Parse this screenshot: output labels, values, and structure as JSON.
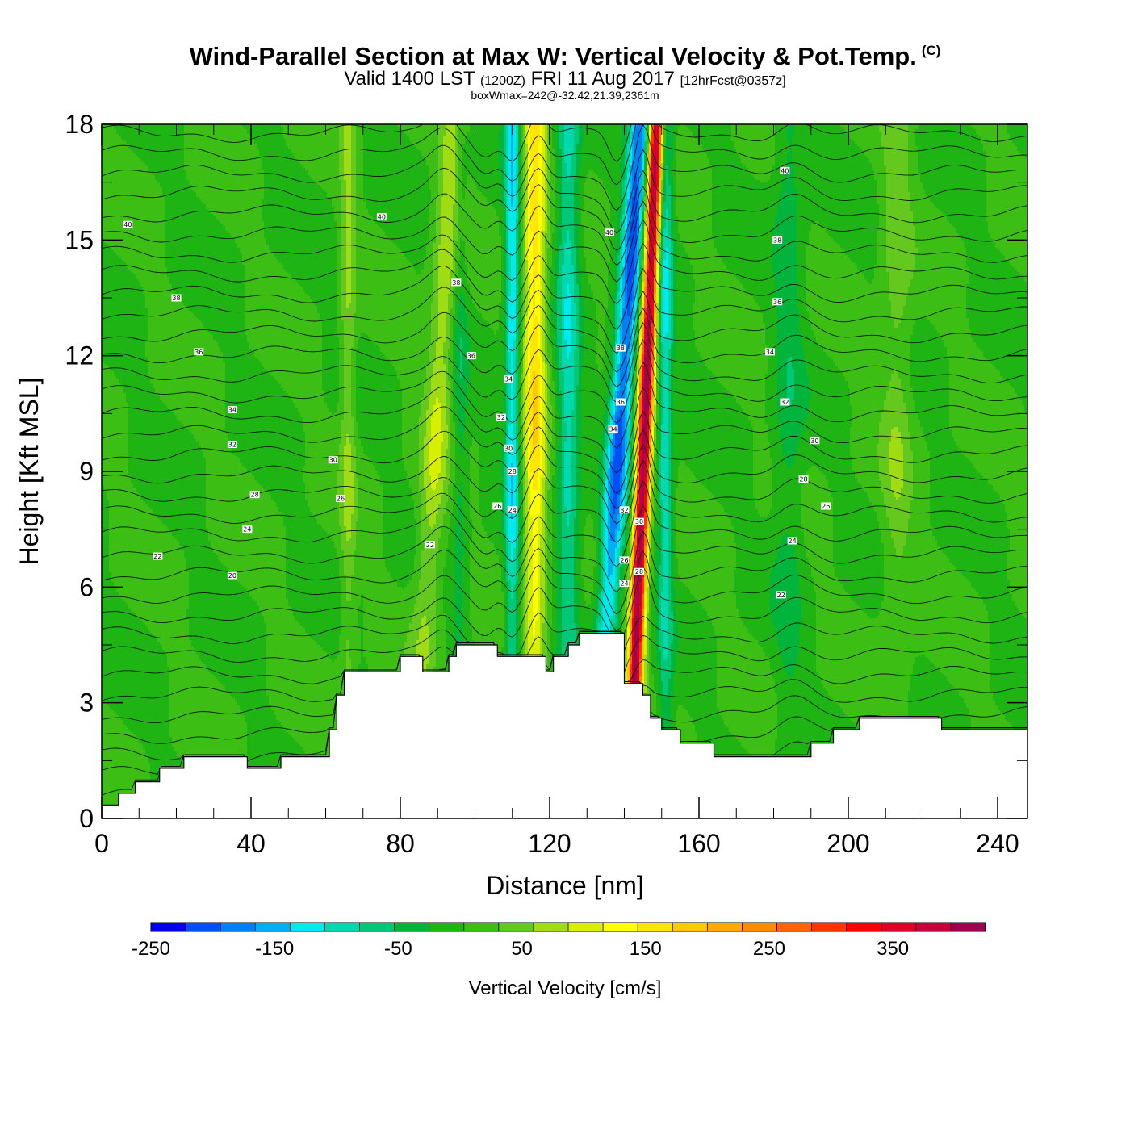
{
  "title": {
    "main": "Wind-Parallel Section at Max W: Vertical Velocity & Pot.Temp.",
    "copyright": "(C)",
    "valid_prefix": "Valid 1400 LST",
    "valid_z": "(1200Z)",
    "valid_date": "FRI 11 Aug 2017",
    "forecast": "[12hrFcst@0357z]",
    "box": "boxWmax=242@-32.42,21.39,2361m"
  },
  "chart_data": {
    "type": "heatmap",
    "xlabel": "Distance [nm]",
    "ylabel": "Height [Kft MSL]",
    "xlim": [
      0,
      248
    ],
    "ylim": [
      0,
      18
    ],
    "x_ticks": [
      "0",
      "40",
      "80",
      "120",
      "160",
      "200",
      "240"
    ],
    "y_ticks": [
      "0",
      "3",
      "6",
      "9",
      "12",
      "15",
      "18"
    ],
    "x_tick_values": [
      0,
      40,
      80,
      120,
      160,
      200,
      240
    ],
    "y_tick_values": [
      0,
      3,
      6,
      9,
      12,
      15,
      18
    ],
    "background_level": -25,
    "terrain": [
      [
        0,
        0.35
      ],
      [
        4.5,
        0.35
      ],
      [
        4.5,
        0.65
      ],
      [
        9,
        0.65
      ],
      [
        9,
        0.95
      ],
      [
        15.5,
        0.95
      ],
      [
        15.5,
        1.3
      ],
      [
        22,
        1.3
      ],
      [
        22,
        1.6
      ],
      [
        39,
        1.6
      ],
      [
        39,
        1.3
      ],
      [
        48,
        1.3
      ],
      [
        48,
        1.6
      ],
      [
        61,
        1.6
      ],
      [
        61,
        2.3
      ],
      [
        63,
        2.3
      ],
      [
        63,
        3.2
      ],
      [
        65,
        3.2
      ],
      [
        65,
        3.8
      ],
      [
        80,
        3.8
      ],
      [
        80,
        4.2
      ],
      [
        86,
        4.2
      ],
      [
        86,
        3.8
      ],
      [
        93,
        3.8
      ],
      [
        93,
        4.2
      ],
      [
        95,
        4.2
      ],
      [
        95,
        4.5
      ],
      [
        106,
        4.5
      ],
      [
        106,
        4.2
      ],
      [
        119,
        4.2
      ],
      [
        119,
        3.8
      ],
      [
        121,
        3.8
      ],
      [
        121,
        4.2
      ],
      [
        125,
        4.2
      ],
      [
        125,
        4.5
      ],
      [
        128,
        4.5
      ],
      [
        128,
        4.8
      ],
      [
        140,
        4.8
      ],
      [
        140,
        3.5
      ],
      [
        145,
        3.5
      ],
      [
        145,
        3.2
      ],
      [
        147,
        3.2
      ],
      [
        147,
        2.6
      ],
      [
        150,
        2.6
      ],
      [
        150,
        2.3
      ],
      [
        155,
        2.3
      ],
      [
        155,
        1.95
      ],
      [
        164,
        1.95
      ],
      [
        164,
        1.6
      ],
      [
        190,
        1.6
      ],
      [
        190,
        1.95
      ],
      [
        196,
        1.95
      ],
      [
        196,
        2.3
      ],
      [
        203,
        2.3
      ],
      [
        203,
        2.6
      ],
      [
        225,
        2.6
      ],
      [
        225,
        2.3
      ],
      [
        248,
        2.3
      ]
    ],
    "w_features": [
      {
        "x": 89,
        "halfwidth": 3.5,
        "peak": 70,
        "x_drift": 0.6
      },
      {
        "x": 96,
        "halfwidth": 2.0,
        "peak": -40,
        "x_drift": 0.0
      },
      {
        "x": 110,
        "halfwidth": 2.0,
        "peak": -120,
        "x_drift": 0.0
      },
      {
        "x": 116,
        "halfwidth": 3.0,
        "peak": 140,
        "x_drift": 0.0
      },
      {
        "x": 125,
        "halfwidth": 3.0,
        "peak": -90,
        "x_drift": 0.0
      },
      {
        "x": 138,
        "halfwidth": 3.0,
        "peak": -180,
        "x_drift": 0.7
      },
      {
        "x": 145,
        "halfwidth": 2.0,
        "peak": 370,
        "x_drift": 0.4
      },
      {
        "x": 151,
        "halfwidth": 2.0,
        "peak": -100,
        "x_drift": 0.0
      },
      {
        "x": 66,
        "halfwidth": 2.0,
        "peak": 50,
        "x_drift": 0.0
      },
      {
        "x": 184,
        "halfwidth": 4.0,
        "peak": -40,
        "x_drift": 0.0
      },
      {
        "x": 213,
        "halfwidth": 4.0,
        "peak": 40,
        "x_drift": 0.0
      }
    ],
    "theta_labels": [
      {
        "x": 7,
        "y": 15.4,
        "text": "40"
      },
      {
        "x": 75,
        "y": 15.6,
        "text": "40"
      },
      {
        "x": 20,
        "y": 13.5,
        "text": "38"
      },
      {
        "x": 26,
        "y": 12.1,
        "text": "36"
      },
      {
        "x": 35,
        "y": 10.6,
        "text": "34"
      },
      {
        "x": 35,
        "y": 9.7,
        "text": "32"
      },
      {
        "x": 62,
        "y": 9.3,
        "text": "30"
      },
      {
        "x": 41,
        "y": 8.4,
        "text": "28"
      },
      {
        "x": 64,
        "y": 8.3,
        "text": "26"
      },
      {
        "x": 39,
        "y": 7.5,
        "text": "24"
      },
      {
        "x": 15,
        "y": 6.8,
        "text": "22"
      },
      {
        "x": 35,
        "y": 6.3,
        "text": "20"
      },
      {
        "x": 95,
        "y": 13.9,
        "text": "38"
      },
      {
        "x": 99,
        "y": 12.0,
        "text": "36"
      },
      {
        "x": 109,
        "y": 11.4,
        "text": "34"
      },
      {
        "x": 107,
        "y": 10.4,
        "text": "32"
      },
      {
        "x": 109,
        "y": 9.6,
        "text": "30"
      },
      {
        "x": 110,
        "y": 9.0,
        "text": "28"
      },
      {
        "x": 106,
        "y": 8.1,
        "text": "26"
      },
      {
        "x": 110,
        "y": 8.0,
        "text": "24"
      },
      {
        "x": 88,
        "y": 7.1,
        "text": "22"
      },
      {
        "x": 136,
        "y": 15.2,
        "text": "40"
      },
      {
        "x": 139,
        "y": 12.2,
        "text": "38"
      },
      {
        "x": 139,
        "y": 10.8,
        "text": "36"
      },
      {
        "x": 137,
        "y": 10.1,
        "text": "34"
      },
      {
        "x": 140,
        "y": 8.0,
        "text": "32"
      },
      {
        "x": 144,
        "y": 7.7,
        "text": "30"
      },
      {
        "x": 140,
        "y": 6.7,
        "text": "26"
      },
      {
        "x": 144,
        "y": 6.4,
        "text": "28"
      },
      {
        "x": 140,
        "y": 6.1,
        "text": "24"
      },
      {
        "x": 183,
        "y": 16.8,
        "text": "40"
      },
      {
        "x": 181,
        "y": 15.0,
        "text": "38"
      },
      {
        "x": 181,
        "y": 13.4,
        "text": "36"
      },
      {
        "x": 179,
        "y": 12.1,
        "text": "34"
      },
      {
        "x": 183,
        "y": 10.8,
        "text": "32"
      },
      {
        "x": 191,
        "y": 9.8,
        "text": "30"
      },
      {
        "x": 188,
        "y": 8.8,
        "text": "28"
      },
      {
        "x": 194,
        "y": 8.1,
        "text": "26"
      },
      {
        "x": 185,
        "y": 7.2,
        "text": "24"
      },
      {
        "x": 182,
        "y": 5.8,
        "text": "22"
      }
    ]
  },
  "colorbar": {
    "label": "Vertical Velocity [cm/s]",
    "min": -250,
    "max": 425,
    "step": 25,
    "tick_labels": [
      "-250",
      "-150",
      "-50",
      "50",
      "150",
      "250",
      "350"
    ],
    "tick_values": [
      -250,
      -150,
      -50,
      50,
      150,
      250,
      350
    ],
    "colors": [
      "#0000f2",
      "#0050f5",
      "#0080f5",
      "#00b0f5",
      "#00e8f0",
      "#00d8b0",
      "#00c878",
      "#00b43c",
      "#1eb414",
      "#3cbe14",
      "#64c81e",
      "#a0dc14",
      "#d8f000",
      "#ffff00",
      "#ffe600",
      "#ffc800",
      "#ffaa00",
      "#ff8c00",
      "#ff6400",
      "#ff3200",
      "#ff0000",
      "#e00028",
      "#c8003c",
      "#a00050"
    ]
  }
}
